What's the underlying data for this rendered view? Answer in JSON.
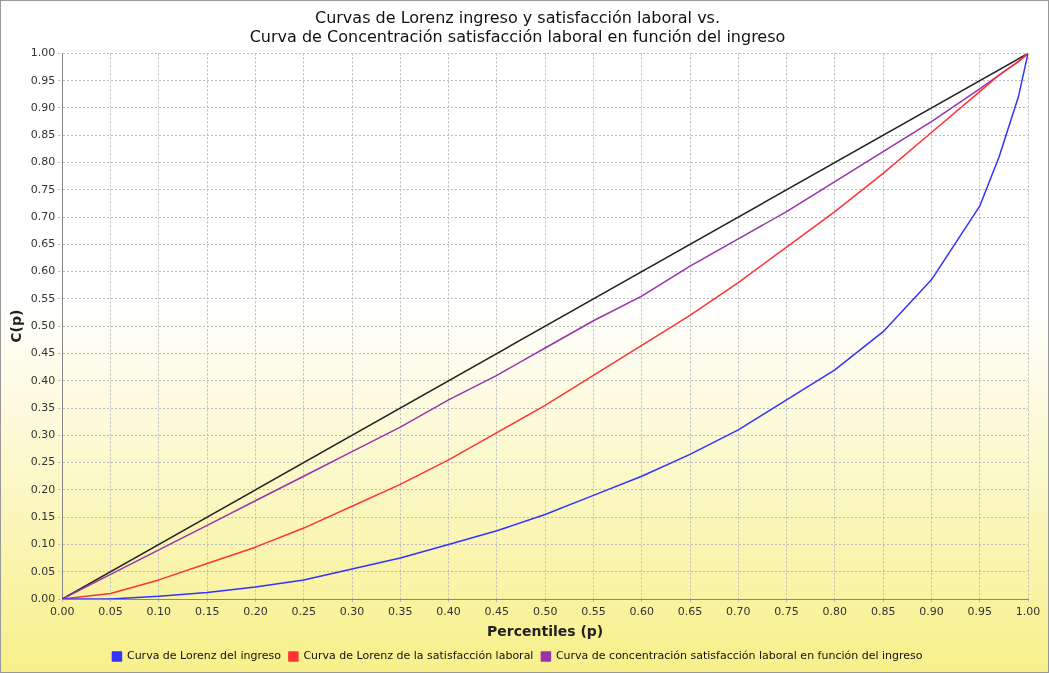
{
  "chart_data": {
    "type": "line",
    "title": "Curvas de Lorenz ingreso y satisfacción laboral vs.\nCurva de Concentración satisfacción laboral en función del ingreso",
    "xlabel": "Percentiles (p)",
    "ylabel": "C(p)",
    "x": [
      0,
      0.05,
      0.1,
      0.15,
      0.2,
      0.25,
      0.3,
      0.35,
      0.4,
      0.45,
      0.5,
      0.55,
      0.6,
      0.65,
      0.7,
      0.75,
      0.8,
      0.85,
      0.9,
      0.95,
      0.97,
      0.99,
      1
    ],
    "series": [
      {
        "name": "Curva de Lorenz del ingreso",
        "color": "#3333ff",
        "values": [
          0,
          0,
          0.005,
          0.012,
          0.022,
          0.035,
          0.055,
          0.075,
          0.1,
          0.125,
          0.155,
          0.19,
          0.225,
          0.265,
          0.31,
          0.365,
          0.42,
          0.49,
          0.585,
          0.72,
          0.81,
          0.92,
          1
        ]
      },
      {
        "name": "Curva de Lorenz de la satisfacción laboral",
        "color": "#ff3333",
        "values": [
          0,
          0.01,
          0.035,
          0.065,
          0.095,
          0.13,
          0.17,
          0.21,
          0.255,
          0.305,
          0.355,
          0.41,
          0.465,
          0.52,
          0.58,
          0.645,
          0.71,
          0.78,
          0.855,
          0.93,
          0.96,
          0.985,
          1
        ]
      },
      {
        "name": "Curva de concentración satisfacción laboral en función del ingreso",
        "color": "#9933aa",
        "values": [
          0,
          0.045,
          0.09,
          0.135,
          0.18,
          0.225,
          0.27,
          0.315,
          0.365,
          0.41,
          0.46,
          0.51,
          0.555,
          0.61,
          0.66,
          0.71,
          0.765,
          0.82,
          0.875,
          0.935,
          0.96,
          0.985,
          1
        ]
      },
      {
        "color": "#222222",
        "x": [
          0,
          1
        ],
        "values": [
          0,
          1
        ]
      }
    ],
    "xlim": [
      0,
      1
    ],
    "ylim": [
      0,
      1
    ],
    "xticks": [
      {
        "value": 0,
        "label": "0.00"
      },
      0.05,
      {
        "value": 0.1,
        "label": "0.10"
      },
      0.15,
      {
        "value": 0.2,
        "label": "0.20"
      },
      0.25,
      {
        "value": 0.3,
        "label": "0.30"
      },
      0.35,
      {
        "value": 0.4,
        "label": "0.40"
      },
      0.45,
      {
        "value": 0.5,
        "label": "0.50"
      },
      0.55,
      {
        "value": 0.6,
        "label": "0.60"
      },
      0.65,
      {
        "value": 0.7,
        "label": "0.70"
      },
      0.75,
      {
        "value": 0.8,
        "label": "0.80"
      },
      0.85,
      {
        "value": 0.9,
        "label": "0.90"
      },
      0.95,
      {
        "value": 1,
        "label": "1.00"
      }
    ],
    "yticks": [
      {
        "value": 0,
        "label": "0.00"
      },
      0.05,
      {
        "value": 0.1,
        "label": "0.10"
      },
      0.15,
      {
        "value": 0.2,
        "label": "0.20"
      },
      0.25,
      {
        "value": 0.3,
        "label": "0.30"
      },
      0.35,
      {
        "value": 0.4,
        "label": "0.40"
      },
      0.45,
      {
        "value": 0.5,
        "label": "0.50"
      },
      0.55,
      {
        "value": 0.6,
        "label": "0.60"
      },
      0.65,
      {
        "value": 0.7,
        "label": "0.70"
      },
      0.75,
      {
        "value": 0.8,
        "label": "0.80"
      },
      0.85,
      {
        "value": 0.9,
        "label": "0.90"
      },
      0.95,
      {
        "value": 1,
        "label": "1.00"
      }
    ],
    "grid": true,
    "legend": "bottom",
    "marker": "none",
    "line_style": "solid"
  }
}
